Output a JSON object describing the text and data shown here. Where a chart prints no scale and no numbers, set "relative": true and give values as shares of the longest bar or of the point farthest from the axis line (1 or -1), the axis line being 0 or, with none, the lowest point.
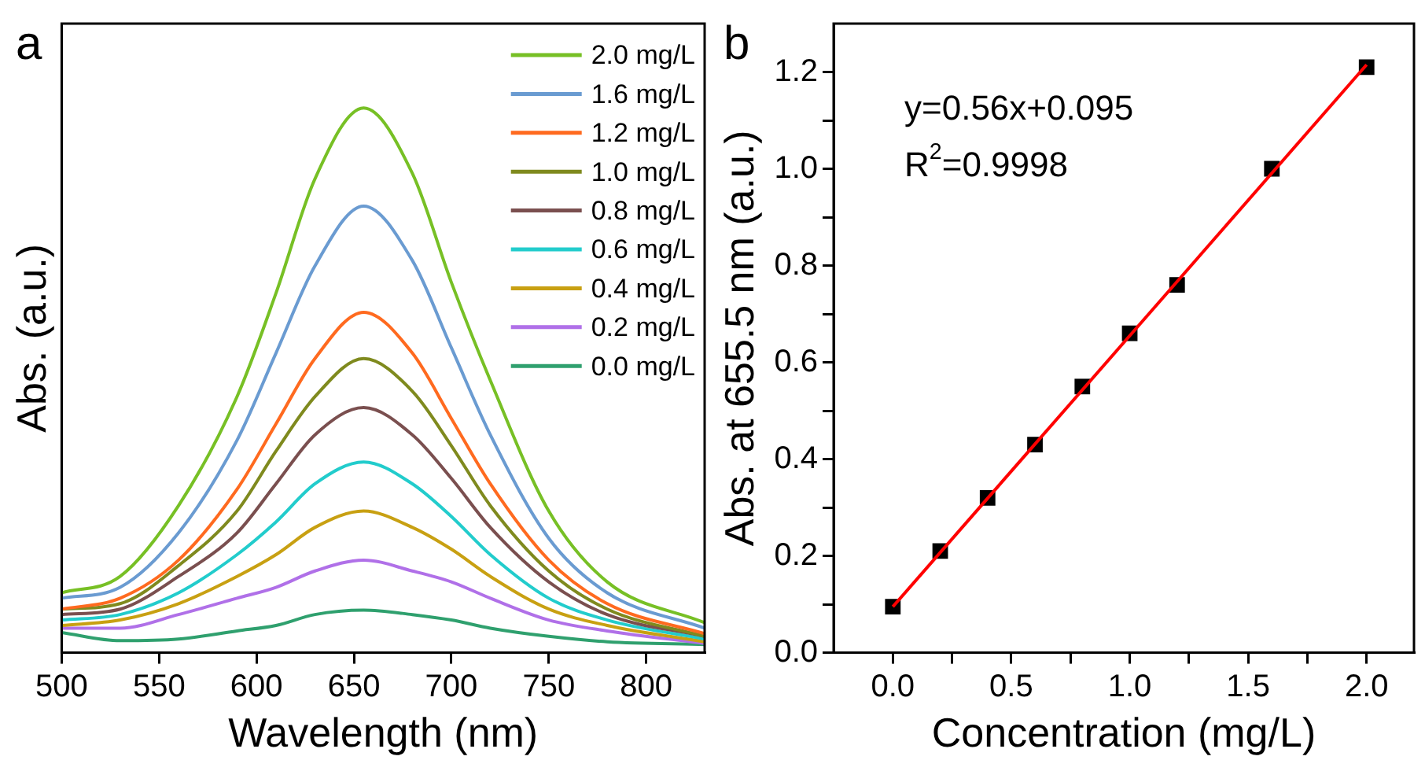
{
  "chart_data": [
    {
      "type": "line",
      "title": "a",
      "xlabel": "Wavelength (nm)",
      "ylabel": "Abs. (a.u.)",
      "relative": true,
      "legend": "top right",
      "marker": "none",
      "line_style": "solid",
      "xlim": [
        500,
        830
      ],
      "xticks": [
        500,
        550,
        600,
        650,
        700,
        750,
        800
      ],
      "x": [
        500,
        530,
        560,
        590,
        610,
        630,
        655,
        680,
        700,
        720,
        750,
        780,
        830
      ],
      "series": [
        {
          "name": "2.0 mg/L",
          "color": "#77c025",
          "values": [
            0.11,
            0.14,
            0.27,
            0.47,
            0.66,
            0.87,
            1.0,
            0.88,
            0.68,
            0.5,
            0.26,
            0.13,
            0.055
          ]
        },
        {
          "name": "1.6 mg/L",
          "color": "#6a9bd1",
          "values": [
            0.1,
            0.12,
            0.22,
            0.39,
            0.55,
            0.71,
            0.82,
            0.72,
            0.56,
            0.4,
            0.21,
            0.11,
            0.045
          ]
        },
        {
          "name": "1.2 mg/L",
          "color": "#ff6a1f",
          "values": [
            0.08,
            0.1,
            0.17,
            0.3,
            0.42,
            0.54,
            0.625,
            0.55,
            0.43,
            0.31,
            0.17,
            0.09,
            0.035
          ]
        },
        {
          "name": "1.0 mg/L",
          "color": "#7f8a1e",
          "values": [
            0.08,
            0.09,
            0.16,
            0.26,
            0.37,
            0.47,
            0.54,
            0.48,
            0.38,
            0.27,
            0.15,
            0.08,
            0.03
          ]
        },
        {
          "name": "0.8 mg/L",
          "color": "#7a4f4f",
          "values": [
            0.07,
            0.08,
            0.14,
            0.22,
            0.31,
            0.4,
            0.45,
            0.4,
            0.32,
            0.23,
            0.13,
            0.07,
            0.03
          ]
        },
        {
          "name": "0.6 mg/L",
          "color": "#22cccc",
          "values": [
            0.06,
            0.07,
            0.11,
            0.18,
            0.24,
            0.31,
            0.35,
            0.31,
            0.25,
            0.18,
            0.1,
            0.06,
            0.025
          ]
        },
        {
          "name": "0.4 mg/L",
          "color": "#c8a012",
          "values": [
            0.05,
            0.06,
            0.09,
            0.14,
            0.18,
            0.23,
            0.26,
            0.23,
            0.19,
            0.14,
            0.08,
            0.05,
            0.02
          ]
        },
        {
          "name": "0.2 mg/L",
          "color": "#b070e8",
          "values": [
            0.045,
            0.045,
            0.07,
            0.1,
            0.12,
            0.15,
            0.17,
            0.15,
            0.13,
            0.1,
            0.06,
            0.04,
            0.017
          ]
        },
        {
          "name": "0.0 mg/L",
          "color": "#2fa06e",
          "values": [
            0.037,
            0.022,
            0.025,
            0.04,
            0.05,
            0.07,
            0.078,
            0.07,
            0.06,
            0.045,
            0.03,
            0.02,
            0.015
          ]
        }
      ]
    },
    {
      "type": "scatter",
      "title": "b",
      "xlabel": "Concentration (mg/L)",
      "ylabel": "Abs. at 655.5 nm (a.u.)",
      "annotations": [
        "y=0.56x+0.095",
        "R$^{2}$=0.9998"
      ],
      "marker": "square",
      "xlim": [
        -0.25,
        2.2
      ],
      "ylim": [
        0,
        1.3
      ],
      "xticks": [
        {
          "value": 0,
          "label": "0.0"
        },
        {
          "value": 0.25,
          "label": null
        },
        {
          "value": 0.5,
          "label": "0.5"
        },
        {
          "value": 0.75,
          "label": null
        },
        {
          "value": 1,
          "label": "1.0"
        },
        {
          "value": 1.25,
          "label": null
        },
        {
          "value": 1.5,
          "label": "1.5"
        },
        {
          "value": 1.75,
          "label": null
        },
        {
          "value": 2,
          "label": "2.0"
        }
      ],
      "yticks": [
        {
          "value": 0,
          "label": "0.0"
        },
        {
          "value": 0.1,
          "label": null
        },
        {
          "value": 0.2,
          "label": "0.2"
        },
        {
          "value": 0.3,
          "label": null
        },
        {
          "value": 0.4,
          "label": "0.4"
        },
        {
          "value": 0.5,
          "label": null
        },
        {
          "value": 0.6,
          "label": "0.6"
        },
        {
          "value": 0.7,
          "label": null
        },
        {
          "value": 0.8,
          "label": "0.8"
        },
        {
          "value": 0.9,
          "label": null
        },
        {
          "value": 1,
          "label": "1.0"
        },
        {
          "value": 1.1,
          "label": null
        },
        {
          "value": 1.2,
          "label": "1.2"
        }
      ],
      "x": [
        0,
        0.2,
        0.4,
        0.6,
        0.8,
        1.0,
        1.2,
        1.6,
        2.0
      ],
      "series": [
        {
          "color": "#000000",
          "values": [
            0.095,
            0.21,
            0.32,
            0.43,
            0.55,
            0.66,
            0.76,
            1.0,
            1.21
          ]
        },
        {
          "type": "line",
          "marker": "none",
          "color": "#ff0000",
          "x": [
            0,
            2
          ],
          "values": [
            0.095,
            1.215
          ]
        }
      ]
    }
  ]
}
